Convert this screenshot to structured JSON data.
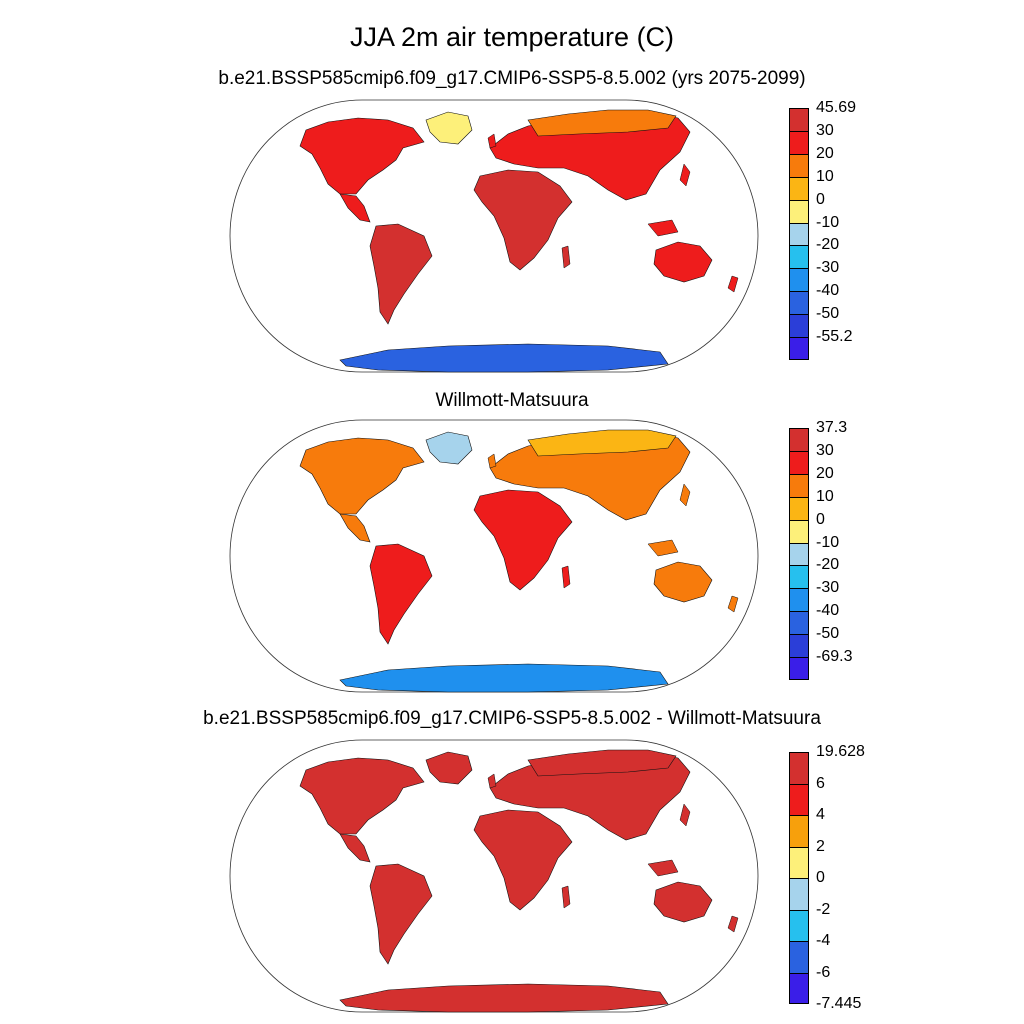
{
  "title": "JJA 2m air temperature (C)",
  "panels": [
    {
      "title": "b.e21.BSSP585cmip6.f09_g17.CMIP6-SSP5-8.5.002 (yrs 2075-2099)",
      "colorbar": {
        "labels": [
          "45.69",
          "30",
          "20",
          "10",
          "0",
          "-10",
          "-20",
          "-30",
          "-40",
          "-50",
          "-55.2"
        ],
        "colors": [
          "#d3302f",
          "#ee1c1c",
          "#f77b0c",
          "#fbb514",
          "#fdf07a",
          "#a6d3ec",
          "#26c0ee",
          "#1f90ee",
          "#2a62e0",
          "#2b3ed8",
          "#3a1ee8"
        ]
      },
      "land": {
        "north_america": "#ee1c1c",
        "greenland": "#fdf07a",
        "south_america": "#d3302f",
        "europe_asia": "#ee1c1c",
        "siberia": "#f77b0c",
        "africa": "#d3302f",
        "australia": "#ee1c1c",
        "antarctica": "#2a62e0"
      }
    },
    {
      "title": "Willmott-Matsuura",
      "colorbar": {
        "labels": [
          "37.3",
          "30",
          "20",
          "10",
          "0",
          "-10",
          "-20",
          "-30",
          "-40",
          "-50",
          "-69.3"
        ],
        "colors": [
          "#d3302f",
          "#ee1c1c",
          "#f77b0c",
          "#fbb514",
          "#fdf07a",
          "#a6d3ec",
          "#26c0ee",
          "#1f90ee",
          "#2a62e0",
          "#2b3ed8",
          "#3a1ee8"
        ]
      },
      "land": {
        "north_america": "#f77b0c",
        "greenland": "#a6d3ec",
        "south_america": "#ee1c1c",
        "europe_asia": "#f77b0c",
        "siberia": "#fbb514",
        "africa": "#ee1c1c",
        "australia": "#f77b0c",
        "antarctica": "#1f90ee"
      }
    },
    {
      "title": "b.e21.BSSP585cmip6.f09_g17.CMIP6-SSP5-8.5.002 - Willmott-Matsuura",
      "colorbar": {
        "labels": [
          "19.628",
          "6",
          "4",
          "2",
          "0",
          "-2",
          "-4",
          "-6",
          "-7.445"
        ],
        "colors": [
          "#d3302f",
          "#ee1c1c",
          "#f7a00c",
          "#fdf07a",
          "#a6d3ec",
          "#26c0ee",
          "#2a62e0",
          "#3a1ee8"
        ]
      },
      "land": {
        "north_america": "#d3302f",
        "greenland": "#d3302f",
        "south_america": "#d3302f",
        "europe_asia": "#d3302f",
        "siberia": "#d3302f",
        "africa": "#d3302f",
        "australia": "#d3302f",
        "antarctica": "#d3302f"
      }
    }
  ]
}
